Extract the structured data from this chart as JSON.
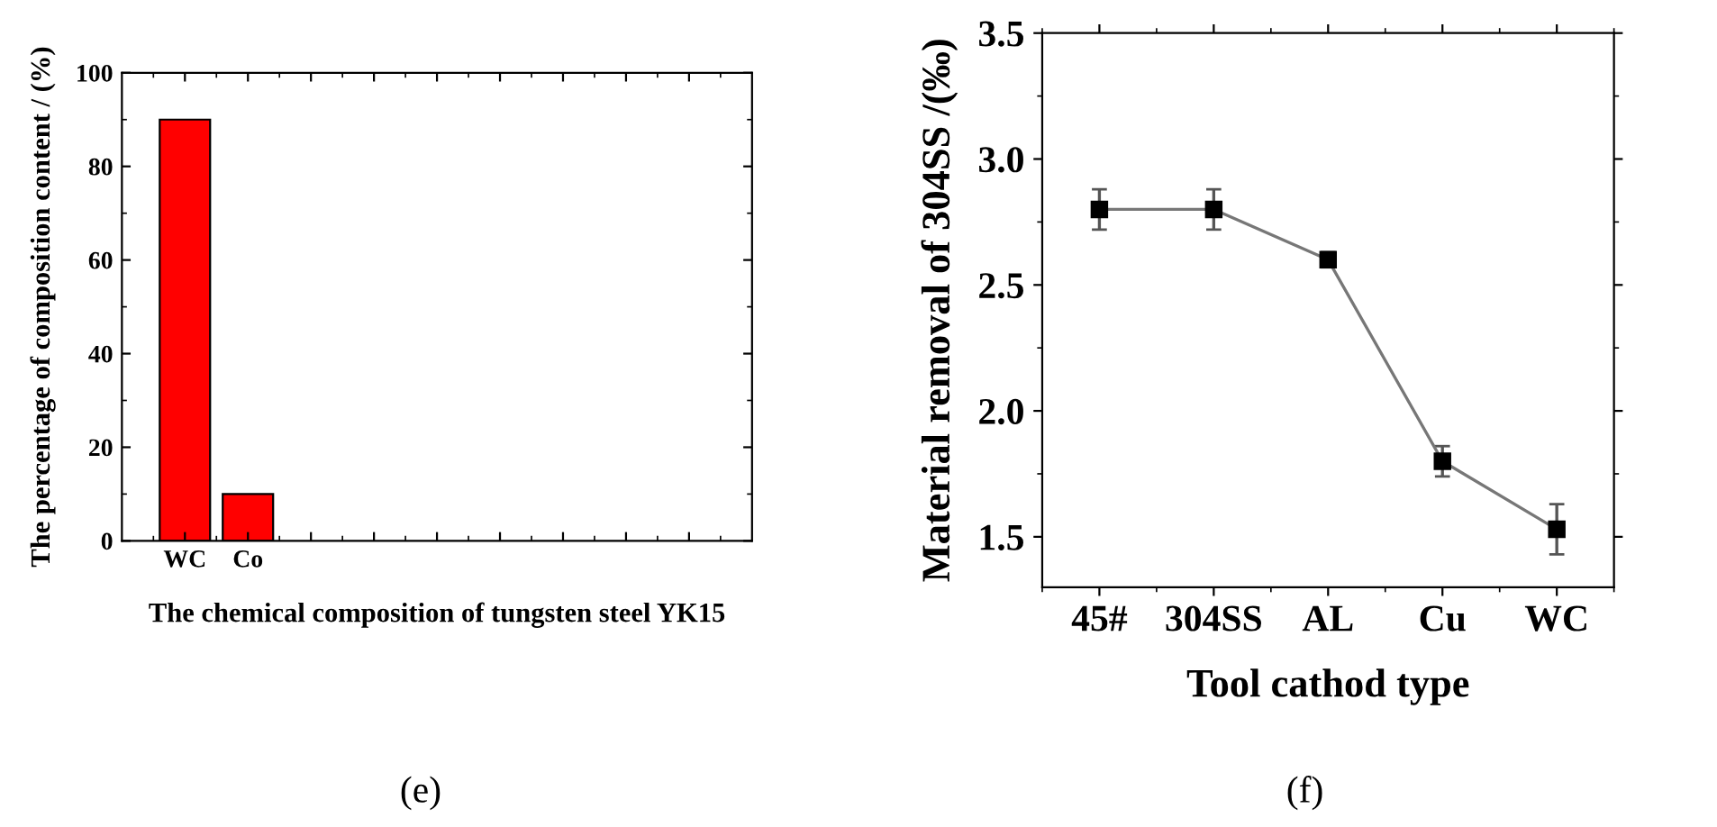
{
  "chart_data": [
    {
      "type": "bar",
      "xlabel": "The chemical composition of tungsten steel YK15",
      "ylabel": "The percentage of composition content / (%)",
      "categories": [
        "WC",
        "Co",
        null,
        null,
        null,
        null,
        null,
        null,
        null
      ],
      "values": [
        90,
        10,
        null,
        null,
        null,
        null,
        null,
        null,
        null
      ],
      "color": "#ff0000",
      "ylim": [
        0,
        100
      ],
      "yticks": [
        0,
        20,
        40,
        60,
        80,
        100
      ],
      "grid": false,
      "legend": false,
      "annotations": [
        "(e)"
      ]
    },
    {
      "type": "line",
      "xlabel": "Tool cathod type",
      "ylabel": "Material removal of 304SS /(‰)",
      "categories": [
        "45#",
        "304SS",
        "AL",
        "Cu",
        "WC"
      ],
      "values": [
        2.8,
        2.8,
        2.6,
        1.8,
        1.53
      ],
      "errors": [
        0.08,
        0.08,
        0.03,
        0.06,
        0.1
      ],
      "color": "#000000",
      "marker": "square",
      "line_style": "solid",
      "ylim": [
        1.3,
        3.5
      ],
      "yticks": [
        1.5,
        {
          "value": 2,
          "label": "2.0"
        },
        2.5,
        {
          "value": 3,
          "label": "3.0"
        },
        3.5
      ],
      "grid": false,
      "legend": false,
      "annotations": [
        "(f)"
      ]
    }
  ]
}
